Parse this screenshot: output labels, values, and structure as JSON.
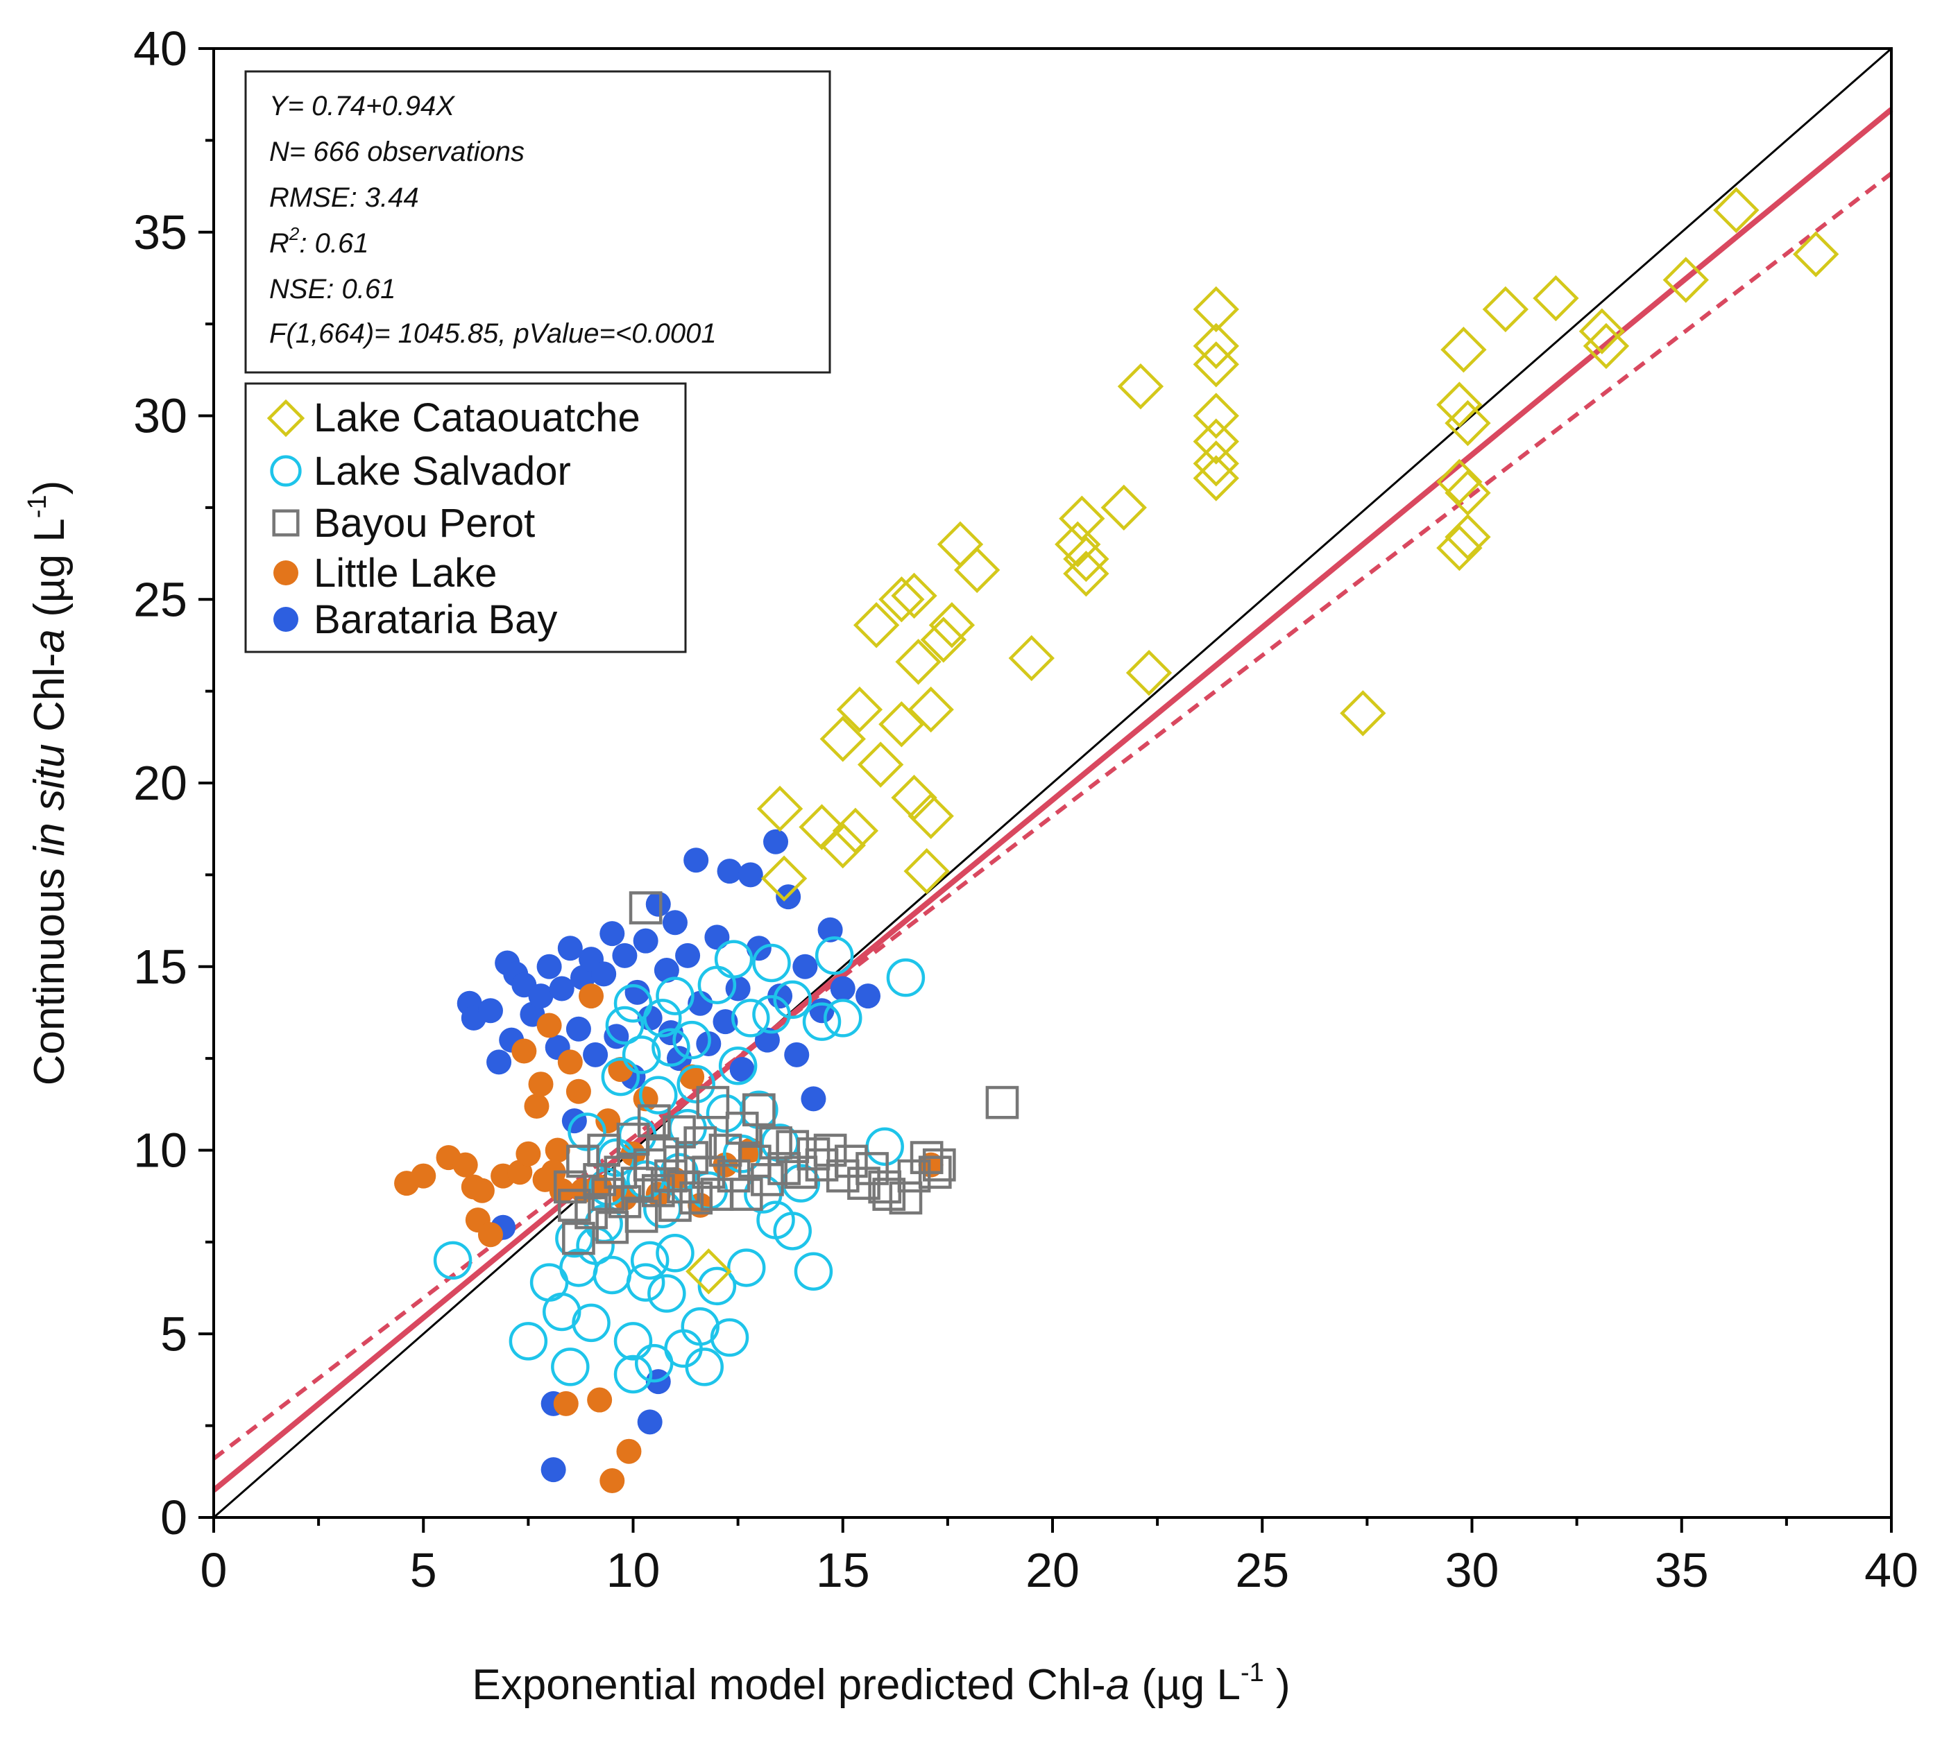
{
  "chart_data": {
    "type": "scatter",
    "xlabel": {
      "main": "Exponential model predicted Chl-",
      "italic": "a",
      "units_open": " (µg L",
      "units_sup": "-1",
      "units_close": " )"
    },
    "ylabel": {
      "prefix": "Continuous ",
      "italic": "in situ",
      "mid": " Chl-",
      "italic2": "a",
      "units_open": " (µg L",
      "units_sup": "-1",
      "units_close": ")"
    },
    "xlim": [
      0,
      40
    ],
    "ylim": [
      0,
      40
    ],
    "xticks": [
      0,
      5,
      10,
      15,
      20,
      25,
      30,
      35,
      40
    ],
    "yticks": [
      0,
      5,
      10,
      15,
      20,
      25,
      30,
      35,
      40
    ],
    "stats": {
      "equation": "Y= 0.74+0.94X",
      "n": "N= 666 observations",
      "rmse": "RMSE: 3.44",
      "r2_prefix": "R",
      "r2_sup": "2",
      "r2_value": ": 0.61",
      "nse": "NSE: 0.61",
      "f_test": "F(1,664)= 1045.85, pValue=<0.0001"
    },
    "lines": [
      {
        "name": "1:1 line",
        "intercept": 0,
        "slope": 1,
        "color": "#000000",
        "style": "solid"
      },
      {
        "name": "Regression fit",
        "intercept": 0.74,
        "slope": 0.94,
        "color": "#d9485f",
        "style": "solid"
      },
      {
        "name": "Reference (dashed)",
        "intercept": 1.6,
        "slope": 0.875,
        "color": "#d9485f",
        "style": "dashed"
      }
    ],
    "legend_position": "top-left",
    "series": [
      {
        "name": "Lake Cataouatche",
        "marker": "diamond-open",
        "color": "#d4c81a",
        "points": [
          [
            13.5,
            19.3
          ],
          [
            13.6,
            17.4
          ],
          [
            14.5,
            18.8
          ],
          [
            15.0,
            18.3
          ],
          [
            15.3,
            18.7
          ],
          [
            15.0,
            21.2
          ],
          [
            15.4,
            22.0
          ],
          [
            15.9,
            20.5
          ],
          [
            15.8,
            24.3
          ],
          [
            16.4,
            21.6
          ],
          [
            16.4,
            25.0
          ],
          [
            16.7,
            25.1
          ],
          [
            16.8,
            23.3
          ],
          [
            16.7,
            19.6
          ],
          [
            17.1,
            19.1
          ],
          [
            17.0,
            17.6
          ],
          [
            17.1,
            22.0
          ],
          [
            17.4,
            23.9
          ],
          [
            17.6,
            24.3
          ],
          [
            17.8,
            26.5
          ],
          [
            18.2,
            25.8
          ],
          [
            19.5,
            23.4
          ],
          [
            20.6,
            26.5
          ],
          [
            20.7,
            27.2
          ],
          [
            20.8,
            26.1
          ],
          [
            20.8,
            25.7
          ],
          [
            21.7,
            27.5
          ],
          [
            22.1,
            30.8
          ],
          [
            22.3,
            23.0
          ],
          [
            23.9,
            32.9
          ],
          [
            23.9,
            31.9
          ],
          [
            23.9,
            31.4
          ],
          [
            23.9,
            30.0
          ],
          [
            23.9,
            29.3
          ],
          [
            23.9,
            28.7
          ],
          [
            23.9,
            28.3
          ],
          [
            27.4,
            21.9
          ],
          [
            29.8,
            31.8
          ],
          [
            29.7,
            30.3
          ],
          [
            29.9,
            29.8
          ],
          [
            29.7,
            28.2
          ],
          [
            29.9,
            27.9
          ],
          [
            29.9,
            26.7
          ],
          [
            29.7,
            26.4
          ],
          [
            30.8,
            32.9
          ],
          [
            32.0,
            33.2
          ],
          [
            33.1,
            32.3
          ],
          [
            33.2,
            31.9
          ],
          [
            35.1,
            33.7
          ],
          [
            36.3,
            35.6
          ],
          [
            38.2,
            34.4
          ],
          [
            11.8,
            6.7
          ]
        ]
      },
      {
        "name": "Lake Salvador",
        "marker": "circle-open",
        "color": "#1ec4ea",
        "points": [
          [
            5.7,
            7.0
          ],
          [
            7.5,
            4.8
          ],
          [
            8.0,
            6.4
          ],
          [
            8.3,
            5.6
          ],
          [
            8.5,
            4.1
          ],
          [
            8.7,
            6.8
          ],
          [
            8.9,
            10.5
          ],
          [
            9.0,
            5.3
          ],
          [
            9.3,
            8.0
          ],
          [
            9.4,
            9.0
          ],
          [
            9.5,
            6.6
          ],
          [
            9.7,
            12.0
          ],
          [
            9.8,
            13.4
          ],
          [
            10.0,
            14.0
          ],
          [
            10.0,
            4.8
          ],
          [
            10.0,
            3.9
          ],
          [
            10.1,
            10.4
          ],
          [
            10.2,
            12.6
          ],
          [
            10.3,
            9.2
          ],
          [
            10.3,
            6.4
          ],
          [
            10.5,
            4.2
          ],
          [
            10.6,
            11.5
          ],
          [
            10.7,
            13.6
          ],
          [
            10.7,
            8.4
          ],
          [
            10.8,
            6.1
          ],
          [
            10.9,
            12.8
          ],
          [
            11.0,
            14.2
          ],
          [
            11.0,
            7.2
          ],
          [
            11.2,
            4.6
          ],
          [
            11.3,
            10.6
          ],
          [
            11.4,
            13.0
          ],
          [
            11.5,
            11.8
          ],
          [
            11.6,
            5.2
          ],
          [
            11.7,
            4.1
          ],
          [
            11.8,
            8.9
          ],
          [
            12.0,
            14.5
          ],
          [
            12.0,
            6.3
          ],
          [
            12.2,
            11.0
          ],
          [
            12.3,
            4.9
          ],
          [
            12.4,
            15.2
          ],
          [
            12.5,
            12.3
          ],
          [
            12.6,
            9.9
          ],
          [
            12.7,
            6.8
          ],
          [
            12.8,
            13.6
          ],
          [
            13.0,
            11.1
          ],
          [
            13.1,
            8.8
          ],
          [
            13.3,
            15.1
          ],
          [
            13.3,
            13.7
          ],
          [
            13.4,
            8.1
          ],
          [
            13.5,
            10.2
          ],
          [
            13.8,
            14.1
          ],
          [
            13.8,
            7.8
          ],
          [
            14.0,
            9.1
          ],
          [
            14.3,
            6.7
          ],
          [
            14.5,
            13.5
          ],
          [
            14.8,
            15.3
          ],
          [
            15.0,
            13.6
          ],
          [
            16.0,
            10.1
          ],
          [
            16.5,
            14.7
          ],
          [
            8.6,
            7.6
          ],
          [
            9.1,
            7.4
          ],
          [
            9.6,
            9.8
          ],
          [
            11.1,
            9.4
          ],
          [
            10.4,
            7.0
          ]
        ]
      },
      {
        "name": "Bayou Perot",
        "marker": "square-open",
        "color": "#777777",
        "points": [
          [
            10.3,
            16.6
          ],
          [
            18.8,
            11.3
          ],
          [
            8.5,
            9.0
          ],
          [
            8.6,
            8.5
          ],
          [
            8.7,
            7.6
          ],
          [
            8.8,
            9.7
          ],
          [
            9.0,
            8.3
          ],
          [
            9.2,
            9.2
          ],
          [
            9.3,
            10.0
          ],
          [
            9.4,
            8.8
          ],
          [
            9.5,
            7.9
          ],
          [
            9.7,
            9.4
          ],
          [
            9.8,
            8.6
          ],
          [
            10.0,
            10.3
          ],
          [
            10.1,
            9.1
          ],
          [
            10.2,
            8.2
          ],
          [
            10.4,
            9.6
          ],
          [
            10.5,
            10.8
          ],
          [
            10.6,
            8.9
          ],
          [
            10.7,
            9.9
          ],
          [
            10.9,
            9.3
          ],
          [
            11.0,
            8.5
          ],
          [
            11.1,
            10.5
          ],
          [
            11.2,
            9.0
          ],
          [
            11.4,
            9.8
          ],
          [
            11.5,
            8.7
          ],
          [
            11.6,
            10.2
          ],
          [
            11.8,
            9.4
          ],
          [
            11.9,
            11.3
          ],
          [
            12.0,
            8.8
          ],
          [
            12.2,
            10.0
          ],
          [
            12.4,
            9.3
          ],
          [
            12.6,
            10.6
          ],
          [
            12.7,
            8.8
          ],
          [
            12.9,
            9.7
          ],
          [
            13.0,
            11.1
          ],
          [
            13.2,
            9.2
          ],
          [
            13.4,
            10.2
          ],
          [
            13.6,
            9.5
          ],
          [
            13.8,
            10.1
          ],
          [
            14.0,
            9.4
          ],
          [
            14.3,
            9.9
          ],
          [
            14.5,
            9.6
          ],
          [
            14.7,
            10.0
          ],
          [
            15.0,
            9.3
          ],
          [
            15.2,
            9.7
          ],
          [
            15.5,
            9.1
          ],
          [
            15.7,
            9.5
          ],
          [
            16.0,
            9.0
          ],
          [
            16.1,
            8.8
          ],
          [
            16.5,
            8.7
          ],
          [
            16.7,
            9.3
          ],
          [
            17.0,
            9.8
          ],
          [
            17.2,
            9.4
          ],
          [
            17.3,
            9.6
          ]
        ]
      },
      {
        "name": "Little Lake",
        "marker": "circle-filled",
        "color": "#e3751b",
        "points": [
          [
            4.6,
            9.1
          ],
          [
            5.0,
            9.3
          ],
          [
            5.6,
            9.8
          ],
          [
            6.0,
            9.6
          ],
          [
            6.2,
            9.0
          ],
          [
            6.4,
            8.9
          ],
          [
            6.3,
            8.1
          ],
          [
            6.6,
            7.7
          ],
          [
            6.9,
            9.3
          ],
          [
            7.3,
            9.4
          ],
          [
            7.5,
            9.9
          ],
          [
            7.4,
            12.7
          ],
          [
            7.7,
            11.2
          ],
          [
            7.8,
            11.8
          ],
          [
            8.0,
            13.4
          ],
          [
            8.2,
            10.0
          ],
          [
            8.3,
            8.9
          ],
          [
            8.5,
            12.4
          ],
          [
            8.4,
            3.1
          ],
          [
            8.7,
            11.6
          ],
          [
            9.0,
            14.2
          ],
          [
            9.2,
            3.2
          ],
          [
            9.2,
            9.0
          ],
          [
            9.4,
            10.8
          ],
          [
            9.5,
            1.0
          ],
          [
            9.7,
            12.2
          ],
          [
            9.8,
            8.7
          ],
          [
            9.9,
            1.8
          ],
          [
            10.0,
            9.9
          ],
          [
            10.3,
            11.4
          ],
          [
            10.6,
            8.8
          ],
          [
            11.0,
            9.2
          ],
          [
            11.4,
            12.0
          ],
          [
            11.6,
            8.5
          ],
          [
            12.2,
            9.6
          ],
          [
            12.8,
            10.0
          ],
          [
            17.1,
            9.6
          ],
          [
            8.1,
            9.4
          ],
          [
            7.9,
            9.2
          ],
          [
            8.8,
            8.9
          ]
        ]
      },
      {
        "name": "Barataria Bay",
        "marker": "circle-filled",
        "color": "#2d5fe0",
        "points": [
          [
            6.1,
            14.0
          ],
          [
            6.2,
            13.6
          ],
          [
            6.6,
            13.8
          ],
          [
            6.8,
            12.4
          ],
          [
            7.0,
            15.1
          ],
          [
            7.2,
            14.8
          ],
          [
            7.1,
            13.0
          ],
          [
            7.4,
            14.5
          ],
          [
            7.6,
            13.7
          ],
          [
            7.8,
            14.2
          ],
          [
            8.0,
            15.0
          ],
          [
            8.2,
            12.8
          ],
          [
            8.3,
            14.4
          ],
          [
            8.5,
            15.5
          ],
          [
            8.7,
            13.3
          ],
          [
            8.8,
            14.7
          ],
          [
            9.0,
            15.2
          ],
          [
            9.1,
            12.6
          ],
          [
            9.3,
            14.8
          ],
          [
            9.5,
            15.9
          ],
          [
            9.6,
            13.1
          ],
          [
            9.8,
            15.3
          ],
          [
            10.0,
            12.0
          ],
          [
            10.1,
            14.3
          ],
          [
            10.3,
            15.7
          ],
          [
            10.4,
            13.6
          ],
          [
            10.6,
            16.7
          ],
          [
            10.8,
            14.9
          ],
          [
            10.9,
            13.2
          ],
          [
            11.0,
            16.2
          ],
          [
            11.1,
            12.5
          ],
          [
            11.3,
            15.3
          ],
          [
            11.5,
            17.9
          ],
          [
            11.6,
            14.0
          ],
          [
            11.8,
            12.9
          ],
          [
            12.0,
            15.8
          ],
          [
            12.2,
            13.5
          ],
          [
            12.3,
            17.6
          ],
          [
            12.5,
            14.4
          ],
          [
            12.6,
            12.2
          ],
          [
            12.8,
            17.5
          ],
          [
            13.0,
            15.5
          ],
          [
            13.2,
            13.0
          ],
          [
            13.4,
            18.4
          ],
          [
            13.5,
            14.2
          ],
          [
            13.7,
            16.9
          ],
          [
            13.9,
            12.6
          ],
          [
            14.1,
            15.0
          ],
          [
            14.3,
            11.4
          ],
          [
            14.5,
            13.8
          ],
          [
            14.7,
            16.0
          ],
          [
            15.0,
            14.4
          ],
          [
            15.6,
            14.2
          ],
          [
            6.9,
            7.9
          ],
          [
            8.1,
            3.1
          ],
          [
            8.1,
            1.3
          ],
          [
            10.4,
            2.6
          ],
          [
            10.6,
            3.7
          ],
          [
            8.6,
            10.8
          ]
        ]
      }
    ]
  }
}
